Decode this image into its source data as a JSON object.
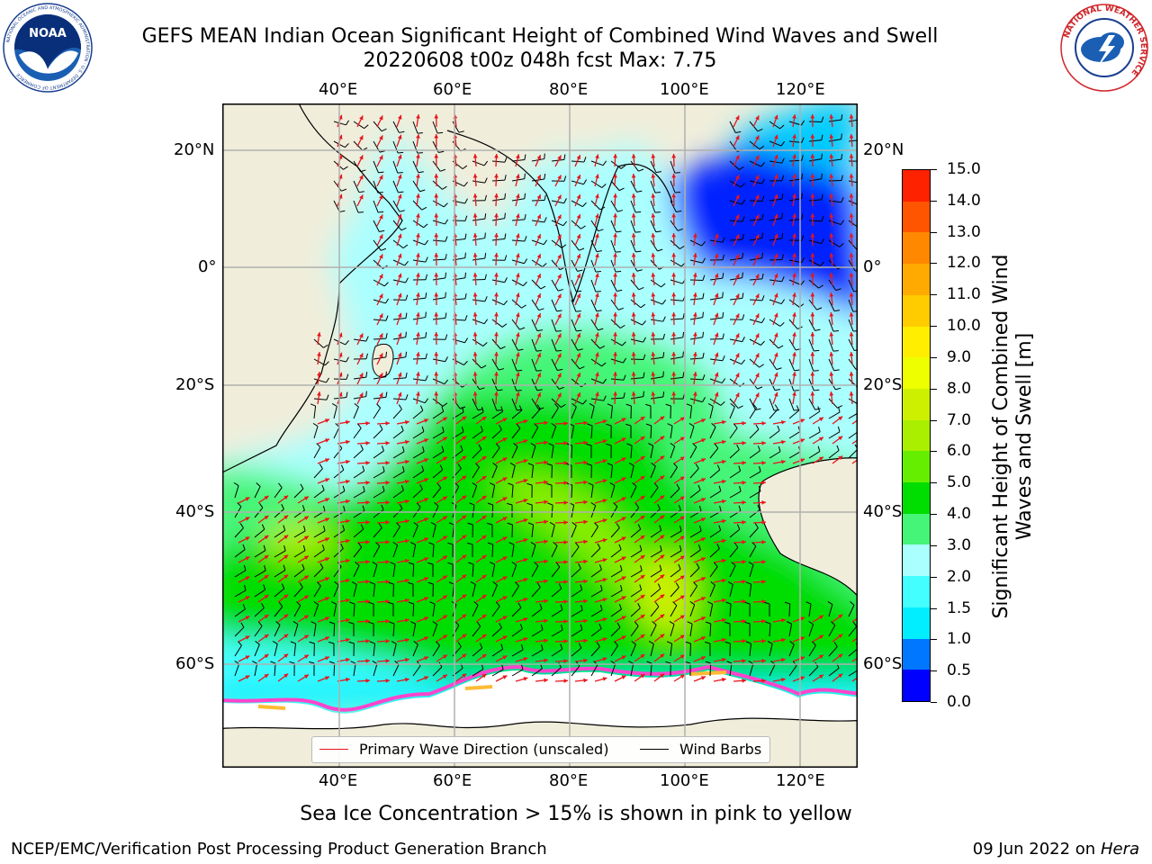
{
  "header": {
    "title_line1": "GEFS MEAN Indian Ocean Significant Height of Combined Wind Waves and Swell",
    "title_line2": "20220608 t00z 048h fcst   Max: 7.75"
  },
  "logos": {
    "noaa_text": "NOAA",
    "noaa_ring_text": "NATIONAL OCEANIC AND ATMOSPHERIC ADMINISTRATION · U.S. DEPARTMENT OF COMMERCE",
    "nws_ring_text": "NATIONAL WEATHER SERVICE"
  },
  "map": {
    "lon_ticks": [
      "40°E",
      "60°E",
      "80°E",
      "100°E",
      "120°E"
    ],
    "lat_ticks": [
      "20°N",
      "0°",
      "20°S",
      "40°S",
      "60°S"
    ],
    "colors": {
      "land": "#f0eedb",
      "ice": "#ffffff",
      "wave_dir": "#e8141a",
      "barb": "#000000"
    }
  },
  "legend": {
    "wave_dir_label": "Primary Wave Direction (unscaled)",
    "barb_label": "Wind Barbs"
  },
  "colorbar": {
    "label": "Significant Height of Combined Wind Waves and Swell [m]",
    "ticks": [
      "15.0",
      "14.0",
      "13.0",
      "12.0",
      "11.0",
      "10.0",
      "9.0",
      "8.0",
      "7.0",
      "6.0",
      "5.0",
      "4.0",
      "3.0",
      "2.0",
      "1.5",
      "1.0",
      "0.5",
      "0.0"
    ],
    "colors": [
      "#0000ff",
      "#0077ff",
      "#00eeff",
      "#44ffff",
      "#aaffff",
      "#44f577",
      "#00dd00",
      "#66ee00",
      "#aaee00",
      "#ccf000",
      "#eeff00",
      "#ffee00",
      "#ffcc00",
      "#ffaa00",
      "#ff8800",
      "#ff5500",
      "#ff2200"
    ]
  },
  "footer": {
    "ice_note": "Sea Ice Concentration > 15% is shown in pink to yellow",
    "branch": "NCEP/EMC/Verification Post Processing Product Generation Branch",
    "date_text": "09 Jun 2022 on",
    "host": "Hera"
  }
}
